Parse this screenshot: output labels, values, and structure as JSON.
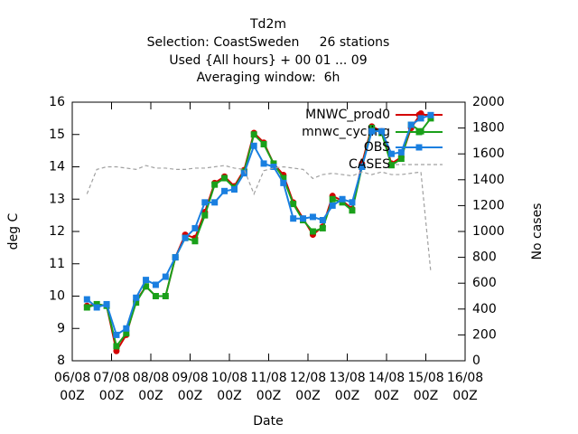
{
  "chart_data": {
    "type": "line",
    "title": [
      "Td2m",
      "Selection: CoastSweden     26 stations",
      "Used {All hours} + 00 01 ... 09",
      "Averaging window:  6h"
    ],
    "xlabel": "Date",
    "ylabel": "deg C",
    "y2label": "No cases",
    "x": [
      9,
      15,
      21,
      27,
      33,
      39,
      45,
      51,
      57,
      63,
      69,
      75,
      81,
      87,
      93,
      99,
      105,
      111,
      117,
      123,
      129,
      135,
      141,
      147,
      153,
      159,
      165,
      171,
      177,
      183,
      189,
      195,
      201,
      207,
      213,
      219
    ],
    "xlim": [
      0,
      240
    ],
    "xticks": [
      {
        "value": 0,
        "label": "06/08\n00Z"
      },
      {
        "value": 24,
        "label": "07/08\n00Z"
      },
      {
        "value": 48,
        "label": "08/08\n00Z"
      },
      {
        "value": 72,
        "label": "09/08\n00Z"
      },
      {
        "value": 96,
        "label": "10/08\n00Z"
      },
      {
        "value": 120,
        "label": "11/08\n00Z"
      },
      {
        "value": 144,
        "label": "12/08\n00Z"
      },
      {
        "value": 168,
        "label": "13/08\n00Z"
      },
      {
        "value": 192,
        "label": "14/08\n00Z"
      },
      {
        "value": 216,
        "label": "15/08\n00Z"
      },
      {
        "value": 240,
        "label": "16/08\n00Z"
      }
    ],
    "ylim": [
      8,
      16
    ],
    "yticks": [
      8,
      9,
      10,
      11,
      12,
      13,
      14,
      15,
      16
    ],
    "y2lim": [
      0,
      2000
    ],
    "y2ticks": [
      0,
      200,
      400,
      600,
      800,
      1000,
      1200,
      1400,
      1600,
      1800,
      2000
    ],
    "legend": "top-right",
    "series": [
      {
        "name": "MNWC_prod0",
        "color": "#d40000",
        "marker": "circle",
        "values": [
          9.7,
          9.75,
          9.7,
          8.3,
          8.8,
          9.85,
          10.3,
          10.0,
          10.0,
          11.2,
          11.9,
          11.8,
          12.6,
          13.5,
          13.7,
          13.4,
          13.9,
          15.05,
          14.75,
          14.1,
          13.75,
          12.9,
          12.4,
          11.9,
          12.15,
          13.1,
          12.95,
          12.7,
          14.1,
          15.25,
          15.1,
          14.1,
          14.3,
          15.2,
          15.65,
          15.55
        ]
      },
      {
        "name": "mnwc_cycling",
        "color": "#1aa01a",
        "marker": "square",
        "values": [
          9.65,
          9.75,
          9.7,
          8.45,
          8.85,
          9.8,
          10.3,
          10.0,
          10.0,
          11.2,
          11.8,
          11.7,
          12.5,
          13.45,
          13.65,
          13.35,
          13.85,
          15.0,
          14.7,
          14.1,
          13.65,
          12.85,
          12.35,
          12.0,
          12.1,
          13.0,
          12.9,
          12.65,
          14.0,
          15.2,
          15.05,
          14.05,
          14.25,
          15.3,
          15.1,
          15.5
        ]
      },
      {
        "name": "OBS",
        "color": "#1a7fe0",
        "marker": "square",
        "values": [
          9.9,
          9.65,
          9.75,
          8.8,
          9.0,
          9.95,
          10.5,
          10.35,
          10.6,
          11.2,
          11.8,
          12.1,
          12.9,
          12.9,
          13.25,
          13.3,
          13.8,
          14.65,
          14.1,
          14.0,
          13.5,
          12.4,
          12.4,
          12.45,
          12.35,
          12.8,
          13.0,
          12.9,
          14.0,
          15.1,
          15.1,
          14.4,
          14.45,
          15.3,
          15.5,
          15.6
        ]
      },
      {
        "name": "CASES",
        "color": "#a0a0a0",
        "dash": true,
        "axis": "y2",
        "values": [
          1290,
          1480,
          1500,
          1500,
          1490,
          1480,
          1510,
          1490,
          1490,
          1480,
          1480,
          1490,
          1490,
          1500,
          1510,
          1490,
          1480,
          1290,
          1470,
          1490,
          1500,
          1490,
          1480,
          1410,
          1440,
          1450,
          1440,
          1430,
          1460,
          1440,
          1460,
          1440,
          1440,
          1450,
          1460,
          690
        ]
      }
    ]
  }
}
